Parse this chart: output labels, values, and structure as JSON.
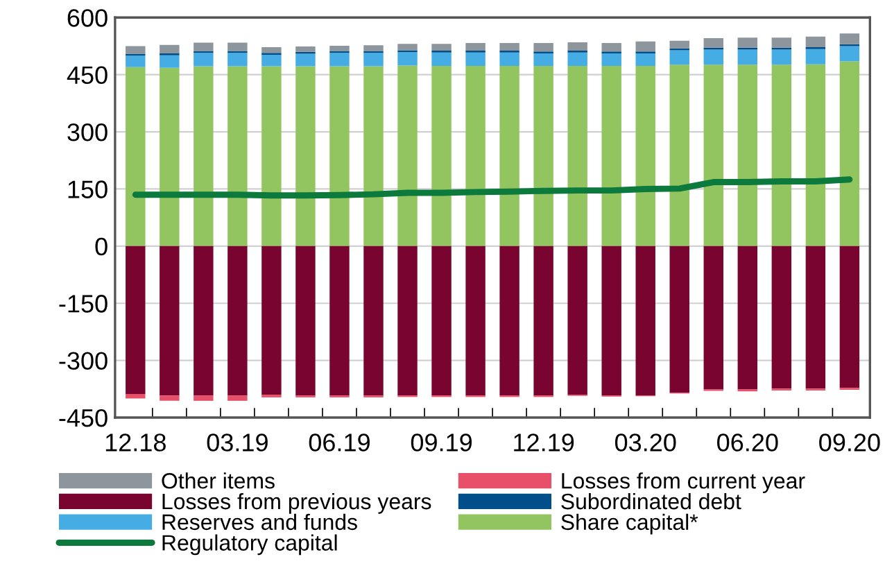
{
  "chart_data": {
    "type": "bar",
    "stacked": true,
    "categories": [
      "12.18",
      null,
      null,
      "03.19",
      null,
      null,
      "06.19",
      null,
      null,
      "09.19",
      null,
      null,
      "12.19",
      null,
      null,
      "03.20",
      null,
      null,
      "06.20",
      null,
      null,
      "09.20"
    ],
    "series": [
      {
        "name": "Share capital*",
        "color": "#92c55f",
        "values": [
          470,
          468,
          472,
          472,
          472,
          472,
          472,
          472,
          474,
          473,
          473,
          473,
          473,
          473,
          473,
          473,
          476,
          476,
          476,
          476,
          477,
          485
        ]
      },
      {
        "name": "Reserves and funds",
        "color": "#45ade4",
        "values": [
          30,
          33,
          35,
          35,
          30,
          33,
          35,
          35,
          35,
          35,
          35,
          35,
          33,
          35,
          33,
          33,
          38,
          40,
          40,
          40,
          40,
          40
        ]
      },
      {
        "name": "Subordinated debt",
        "color": "#004f8a",
        "values": [
          5,
          5,
          5,
          5,
          5,
          5,
          5,
          5,
          5,
          5,
          5,
          5,
          5,
          5,
          5,
          5,
          5,
          5,
          5,
          5,
          5,
          5
        ]
      },
      {
        "name": "Other items",
        "color": "#8c969c",
        "values": [
          20,
          22,
          22,
          22,
          15,
          14,
          14,
          15,
          17,
          18,
          20,
          20,
          22,
          22,
          22,
          26,
          20,
          25,
          26,
          26,
          28,
          28
        ]
      },
      {
        "name": "Losses from previous years",
        "color": "#7a0430",
        "values": [
          -388,
          -392,
          -392,
          -392,
          -390,
          -392,
          -392,
          -392,
          -392,
          -392,
          -392,
          -392,
          -392,
          -390,
          -392,
          -392,
          -385,
          -376,
          -376,
          -374,
          -374,
          -372
        ]
      },
      {
        "name": "Losses from current year",
        "color": "#e8506a",
        "values": [
          -12,
          -14,
          -14,
          -14,
          -7,
          -5,
          -5,
          -5,
          -4,
          -4,
          -4,
          -4,
          -4,
          -3,
          -3,
          -2,
          -2,
          -4,
          -5,
          -5,
          -5,
          -5
        ]
      },
      {
        "name": "Regulatory capital",
        "type": "line",
        "color": "#0c7a3c",
        "values": [
          135,
          135,
          135,
          135,
          133,
          133,
          134,
          136,
          140,
          140,
          142,
          143,
          145,
          146,
          146,
          150,
          151,
          168,
          168,
          170,
          170,
          175
        ]
      }
    ],
    "ylim": [
      -450,
      600
    ],
    "yticks": [
      -450,
      -300,
      -150,
      0,
      150,
      300,
      450,
      600
    ],
    "grid": "y",
    "legend": "bottom",
    "marker": "none",
    "line_style": "solid"
  }
}
